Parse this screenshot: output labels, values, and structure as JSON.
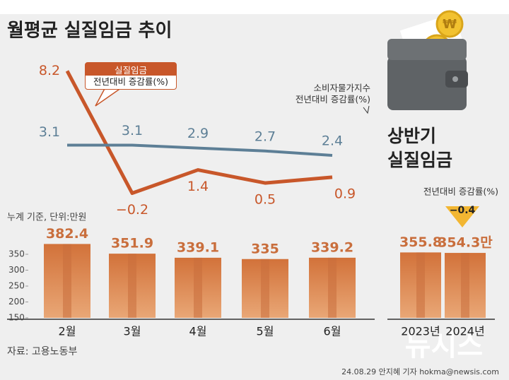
{
  "title": "월평균 실질임금 추이",
  "source": "자료: 고용노동부",
  "credit": "24.08.29 안지혜 기자 hokma@newsis.com",
  "watermark": "뉴시스",
  "chart_data": [
    {
      "type": "line",
      "categories": [
        "2월",
        "3월",
        "4월",
        "5월",
        "6월"
      ],
      "ylim": [
        -1,
        9
      ],
      "series": [
        {
          "name": "실질임금\n전년대비 증감률(%)",
          "color": "#c8572a",
          "values": [
            8.2,
            -0.2,
            1.4,
            0.5,
            0.9
          ],
          "value_labels": [
            "8.2",
            "−0.2",
            "1.4",
            "0.5",
            "0.9"
          ]
        },
        {
          "name": "소비자물가지수\n전년대비 증감률(%)",
          "color": "#5d7f96",
          "values": [
            3.1,
            3.1,
            2.9,
            2.7,
            2.4
          ]
        }
      ]
    },
    {
      "type": "bar",
      "note": "누계 기준, 단위:만원",
      "categories": [
        "2월",
        "3월",
        "4월",
        "5월",
        "6월"
      ],
      "values": [
        382.4,
        351.9,
        339.1,
        335,
        339.2
      ],
      "color": "#c96e3c",
      "ylim": [
        150,
        400
      ],
      "yticks": [
        150,
        200,
        250,
        300,
        350
      ]
    },
    {
      "type": "bar",
      "title": "상반기\n실질임금",
      "categories": [
        "2023년",
        "2024년"
      ],
      "values": [
        355.8,
        354.3
      ],
      "value_labels": [
        "355.8",
        "354.3만"
      ],
      "color": "#c96e3c",
      "ylim": [
        150,
        400
      ],
      "annotation": {
        "label": "전년대비 증감률(%)",
        "value": "−0.4"
      }
    }
  ]
}
